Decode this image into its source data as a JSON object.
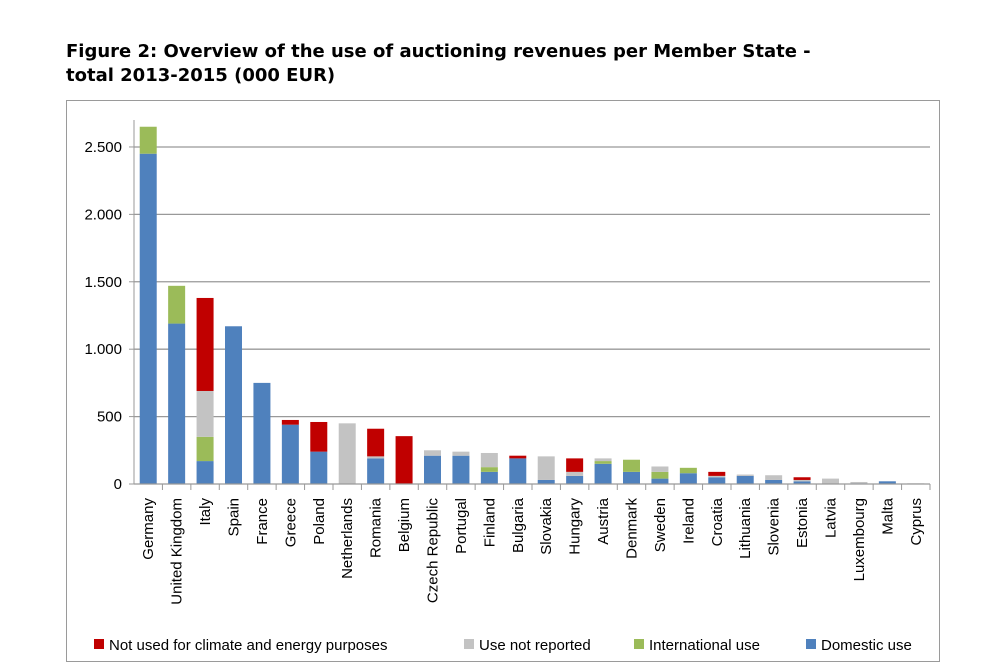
{
  "chart_data": {
    "type": "bar",
    "stacked": true,
    "title": "Figure 2: Overview of the use of auctioning revenues per Member State -\ntotal 2013-2015 (000 EUR)",
    "xlabel": "",
    "ylabel": "",
    "ylim": [
      0,
      2700
    ],
    "yticks": [
      0,
      500,
      1000,
      1500,
      2000,
      2500
    ],
    "ytick_labels": [
      "0",
      "500",
      "1.000",
      "1.500",
      "2.000",
      "2.500"
    ],
    "grid": true,
    "legend_position": "bottom",
    "categories": [
      "Germany",
      "United Kingdom",
      "Italy",
      "Spain",
      "France",
      "Greece",
      "Poland",
      "Netherlands",
      "Romania",
      "Belgium",
      "Czech Republic",
      "Portugal",
      "Finland",
      "Bulgaria",
      "Slovakia",
      "Hungary",
      "Austria",
      "Denmark",
      "Sweden",
      "Ireland",
      "Croatia",
      "Lithuania",
      "Slovenia",
      "Estonia",
      "Latvia",
      "Luxembourg",
      "Malta",
      "Cyprus"
    ],
    "series": [
      {
        "name": "Domestic use",
        "color": "#4f81bd",
        "values": [
          2450,
          1190,
          170,
          1170,
          750,
          440,
          240,
          0,
          190,
          0,
          210,
          210,
          90,
          190,
          30,
          60,
          150,
          90,
          40,
          80,
          50,
          60,
          30,
          20,
          0,
          5,
          20,
          0
        ]
      },
      {
        "name": "International use",
        "color": "#9bbb59",
        "values": [
          200,
          280,
          180,
          0,
          0,
          0,
          0,
          0,
          0,
          0,
          0,
          0,
          35,
          0,
          0,
          0,
          20,
          90,
          50,
          40,
          0,
          0,
          0,
          0,
          0,
          0,
          0,
          0
        ]
      },
      {
        "name": "Use not reported",
        "color": "#c3c3c3",
        "values": [
          0,
          0,
          340,
          0,
          0,
          0,
          0,
          450,
          15,
          0,
          40,
          30,
          105,
          0,
          175,
          30,
          20,
          0,
          40,
          0,
          10,
          10,
          35,
          10,
          40,
          10,
          0,
          5
        ]
      },
      {
        "name": "Not used for climate and energy purposes",
        "color": "#c00000",
        "values": [
          0,
          0,
          690,
          0,
          0,
          35,
          220,
          0,
          205,
          355,
          0,
          0,
          0,
          20,
          0,
          100,
          0,
          0,
          0,
          0,
          30,
          0,
          0,
          20,
          0,
          0,
          0,
          0
        ]
      }
    ],
    "legend": [
      {
        "name": "Not used for climate and energy purposes",
        "color": "#c00000"
      },
      {
        "name": "Use not reported",
        "color": "#c3c3c3"
      },
      {
        "name": "International use",
        "color": "#9bbb59"
      },
      {
        "name": "Domestic use",
        "color": "#4f81bd"
      }
    ]
  }
}
